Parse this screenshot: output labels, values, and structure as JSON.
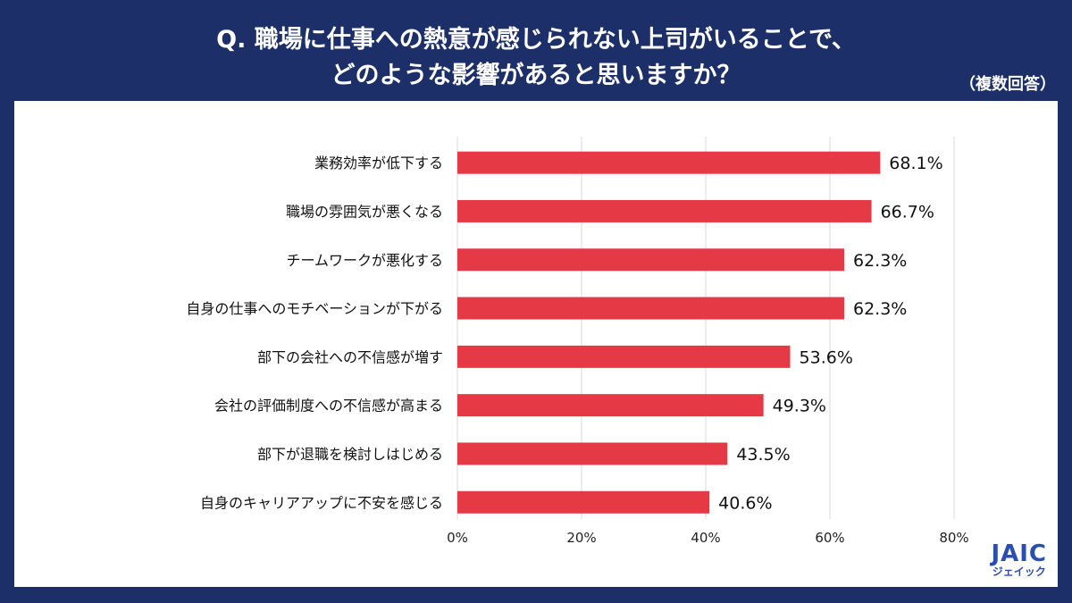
{
  "header": {
    "title_line_1": "Q. 職場に仕事への熱意が感じられない上司がいることで、",
    "title_line_2": "どのような影響があると思いますか？",
    "note": "（複数回答）"
  },
  "logo": {
    "main": "JAIC",
    "sub": "ジェイック"
  },
  "colors": {
    "background": "#1c2f68",
    "bar": "#e63946",
    "grid": "#d9d9d9"
  },
  "chart_data": {
    "type": "bar",
    "orientation": "horizontal",
    "title": "Q. 職場に仕事への熱意が感じられない上司がいることで、どのような影響があると思いますか？",
    "categories": [
      "業務効率が低下する",
      "職場の雰囲気が悪くなる",
      "チームワークが悪化する",
      "自身の仕事へのモチベーションが下がる",
      "部下の会社への不信感が増す",
      "会社の評価制度への不信感が高まる",
      "部下が退職を検討しはじめる",
      "自身のキャリアアップに不安を感じる"
    ],
    "values": [
      68.1,
      66.7,
      62.3,
      62.3,
      53.6,
      49.3,
      43.5,
      40.6
    ],
    "value_labels": [
      "68.1%",
      "66.7%",
      "62.3%",
      "62.3%",
      "53.6%",
      "49.3%",
      "43.5%",
      "40.6%"
    ],
    "xlim": [
      0,
      80
    ],
    "xticks": [
      0,
      20,
      40,
      60,
      80
    ],
    "xtick_labels": [
      "0%",
      "20%",
      "40%",
      "60%",
      "80%"
    ],
    "grid": true
  }
}
